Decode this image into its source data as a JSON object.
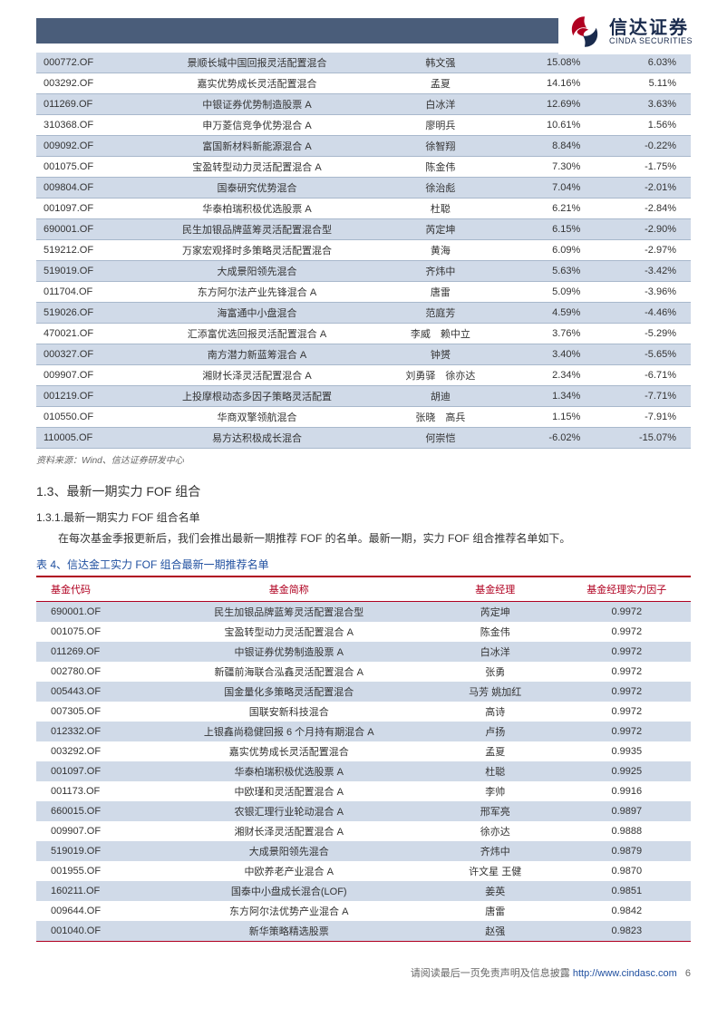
{
  "header": {
    "logo_cn": "信达证券",
    "logo_en": "CINDA SECURITIES"
  },
  "table1": {
    "stripe_color": "#d0dae8",
    "plain_color": "#ffffff",
    "border_color": "#a8b8cc",
    "rows": [
      {
        "code": "000772.OF",
        "name": "景顺长城中国回报灵活配置混合",
        "mgr": "韩文强",
        "v1": "15.08%",
        "v2": "6.03%"
      },
      {
        "code": "003292.OF",
        "name": "嘉实优势成长灵活配置混合",
        "mgr": "孟夏",
        "v1": "14.16%",
        "v2": "5.11%"
      },
      {
        "code": "011269.OF",
        "name": "中银证券优势制造股票 A",
        "mgr": "白冰洋",
        "v1": "12.69%",
        "v2": "3.63%"
      },
      {
        "code": "310368.OF",
        "name": "申万菱信竞争优势混合 A",
        "mgr": "廖明兵",
        "v1": "10.61%",
        "v2": "1.56%"
      },
      {
        "code": "009092.OF",
        "name": "富国新材料新能源混合 A",
        "mgr": "徐智翔",
        "v1": "8.84%",
        "v2": "-0.22%"
      },
      {
        "code": "001075.OF",
        "name": "宝盈转型动力灵活配置混合 A",
        "mgr": "陈金伟",
        "v1": "7.30%",
        "v2": "-1.75%"
      },
      {
        "code": "009804.OF",
        "name": "国泰研究优势混合",
        "mgr": "徐治彪",
        "v1": "7.04%",
        "v2": "-2.01%"
      },
      {
        "code": "001097.OF",
        "name": "华泰柏瑞积极优选股票 A",
        "mgr": "杜聪",
        "v1": "6.21%",
        "v2": "-2.84%"
      },
      {
        "code": "690001.OF",
        "name": "民生加银品牌蓝筹灵活配置混合型",
        "mgr": "芮定坤",
        "v1": "6.15%",
        "v2": "-2.90%"
      },
      {
        "code": "519212.OF",
        "name": "万家宏观择时多策略灵活配置混合",
        "mgr": "黄海",
        "v1": "6.09%",
        "v2": "-2.97%"
      },
      {
        "code": "519019.OF",
        "name": "大成景阳领先混合",
        "mgr": "齐炜中",
        "v1": "5.63%",
        "v2": "-3.42%"
      },
      {
        "code": "011704.OF",
        "name": "东方阿尔法产业先锋混合 A",
        "mgr": "唐雷",
        "v1": "5.09%",
        "v2": "-3.96%"
      },
      {
        "code": "519026.OF",
        "name": "海富通中小盘混合",
        "mgr": "范庭芳",
        "v1": "4.59%",
        "v2": "-4.46%"
      },
      {
        "code": "470021.OF",
        "name": "汇添富优选回报灵活配置混合 A",
        "mgr": "李威　赖中立",
        "v1": "3.76%",
        "v2": "-5.29%"
      },
      {
        "code": "000327.OF",
        "name": "南方潜力新蓝筹混合 A",
        "mgr": "钟赟",
        "v1": "3.40%",
        "v2": "-5.65%"
      },
      {
        "code": "009907.OF",
        "name": "湘财长泽灵活配置混合 A",
        "mgr": "刘勇驿　徐亦达",
        "v1": "2.34%",
        "v2": "-6.71%"
      },
      {
        "code": "001219.OF",
        "name": "上投摩根动态多因子策略灵活配置",
        "mgr": "胡迪",
        "v1": "1.34%",
        "v2": "-7.71%"
      },
      {
        "code": "010550.OF",
        "name": "华商双擎领航混合",
        "mgr": "张晓　高兵",
        "v1": "1.15%",
        "v2": "-7.91%"
      },
      {
        "code": "110005.OF",
        "name": "易方达积极成长混合",
        "mgr": "何崇恺",
        "v1": "-6.02%",
        "v2": "-15.07%"
      }
    ],
    "source": "资料来源：Wind、信达证券研发中心"
  },
  "section": {
    "h2": "1.3、最新一期实力 FOF 组合",
    "h3": "1.3.1.最新一期实力 FOF 组合名单",
    "body": "在每次基金季报更新后，我们会推出最新一期推荐 FOF 的名单。最新一期，实力 FOF 组合推荐名单如下。"
  },
  "table2": {
    "title": "表 4、信达金工实力 FOF 组合最新一期推荐名单",
    "header_color": "#b00020",
    "stripe_color": "#d0dae8",
    "columns": [
      "基金代码",
      "基金简称",
      "基金经理",
      "基金经理实力因子"
    ],
    "rows": [
      {
        "code": "690001.OF",
        "name": "民生加银品牌蓝筹灵活配置混合型",
        "mgr": "芮定坤",
        "f": "0.9972"
      },
      {
        "code": "001075.OF",
        "name": "宝盈转型动力灵活配置混合 A",
        "mgr": "陈金伟",
        "f": "0.9972"
      },
      {
        "code": "011269.OF",
        "name": "中银证券优势制造股票 A",
        "mgr": "白冰洋",
        "f": "0.9972"
      },
      {
        "code": "002780.OF",
        "name": "新疆前海联合泓鑫灵活配置混合 A",
        "mgr": "张勇",
        "f": "0.9972"
      },
      {
        "code": "005443.OF",
        "name": "国金量化多策略灵活配置混合",
        "mgr": "马芳 姚加红",
        "f": "0.9972"
      },
      {
        "code": "007305.OF",
        "name": "国联安新科技混合",
        "mgr": "高诗",
        "f": "0.9972"
      },
      {
        "code": "012332.OF",
        "name": "上银鑫尚稳健回报 6 个月持有期混合 A",
        "mgr": "卢扬",
        "f": "0.9972"
      },
      {
        "code": "003292.OF",
        "name": "嘉实优势成长灵活配置混合",
        "mgr": "孟夏",
        "f": "0.9935"
      },
      {
        "code": "001097.OF",
        "name": "华泰柏瑞积极优选股票 A",
        "mgr": "杜聪",
        "f": "0.9925"
      },
      {
        "code": "001173.OF",
        "name": "中欧瑾和灵活配置混合 A",
        "mgr": "李帅",
        "f": "0.9916"
      },
      {
        "code": "660015.OF",
        "name": "农银汇理行业轮动混合 A",
        "mgr": "邢军亮",
        "f": "0.9897"
      },
      {
        "code": "009907.OF",
        "name": "湘财长泽灵活配置混合 A",
        "mgr": "徐亦达",
        "f": "0.9888"
      },
      {
        "code": "519019.OF",
        "name": "大成景阳领先混合",
        "mgr": "齐炜中",
        "f": "0.9879"
      },
      {
        "code": "001955.OF",
        "name": "中欧养老产业混合 A",
        "mgr": "许文星 王健",
        "f": "0.9870"
      },
      {
        "code": "160211.OF",
        "name": "国泰中小盘成长混合(LOF)",
        "mgr": "姜英",
        "f": "0.9851"
      },
      {
        "code": "009644.OF",
        "name": "东方阿尔法优势产业混合 A",
        "mgr": "唐雷",
        "f": "0.9842"
      },
      {
        "code": "001040.OF",
        "name": "新华策略精选股票",
        "mgr": "赵强",
        "f": "0.9823"
      }
    ]
  },
  "footer": {
    "text": "请阅读最后一页免责声明及信息披露 ",
    "url": "http://www.cindasc.com",
    "page": "6"
  }
}
